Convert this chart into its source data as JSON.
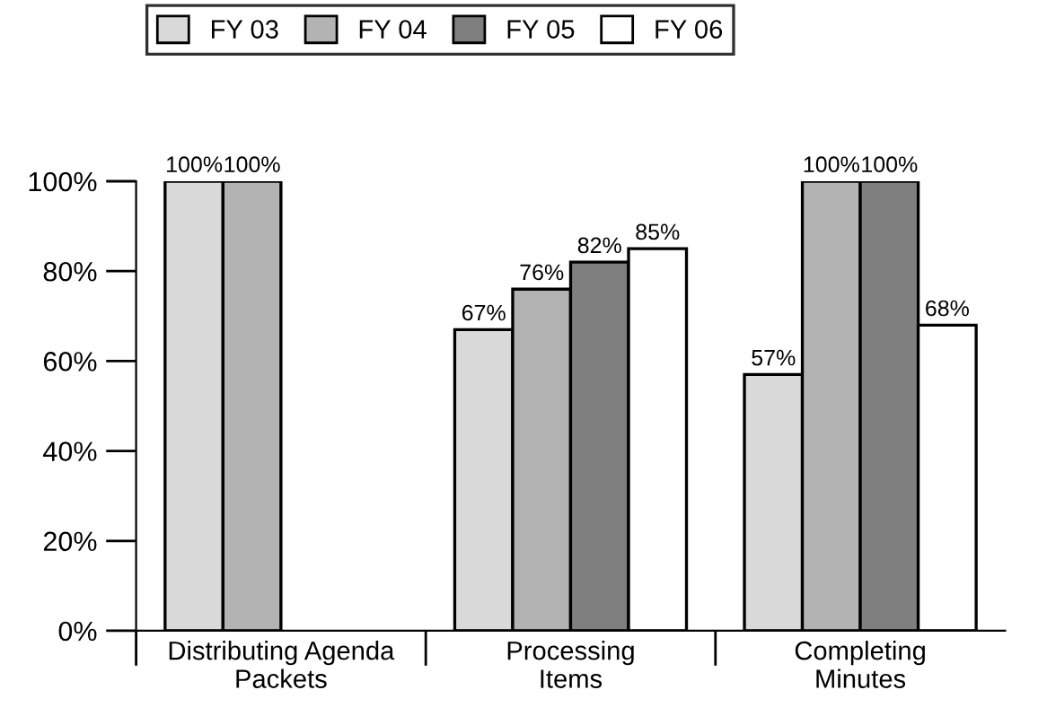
{
  "chart_data": {
    "type": "bar",
    "categories": [
      "Distributing Agenda\nPackets",
      "Processing\nItems",
      "Completing\nMinutes"
    ],
    "series": [
      {
        "name": "FY 03",
        "color": "#d9d9d9",
        "values": [
          100,
          67,
          57
        ],
        "value_labels": [
          "100%",
          "67%",
          "57%"
        ]
      },
      {
        "name": "FY 04",
        "color": "#b3b3b3",
        "values": [
          100,
          76,
          100
        ],
        "value_labels": [
          "100%",
          "76%",
          "100%"
        ]
      },
      {
        "name": "FY 05",
        "color": "#7f7f7f",
        "values": [
          null,
          82,
          100
        ],
        "value_labels": [
          null,
          "82%",
          "100%"
        ]
      },
      {
        "name": "FY 06",
        "color": "#ffffff",
        "values": [
          null,
          85,
          68
        ],
        "value_labels": [
          null,
          "85%",
          "68%"
        ]
      }
    ],
    "ylim": [
      0,
      100
    ],
    "yticks": [
      {
        "value": 0,
        "label": "0%"
      },
      {
        "value": 20,
        "label": "20%"
      },
      {
        "value": 40,
        "label": "40%"
      },
      {
        "value": 60,
        "label": "60%"
      },
      {
        "value": 80,
        "label": "80%"
      },
      {
        "value": 100,
        "label": "100%"
      }
    ],
    "grid": false,
    "legend": "top"
  }
}
